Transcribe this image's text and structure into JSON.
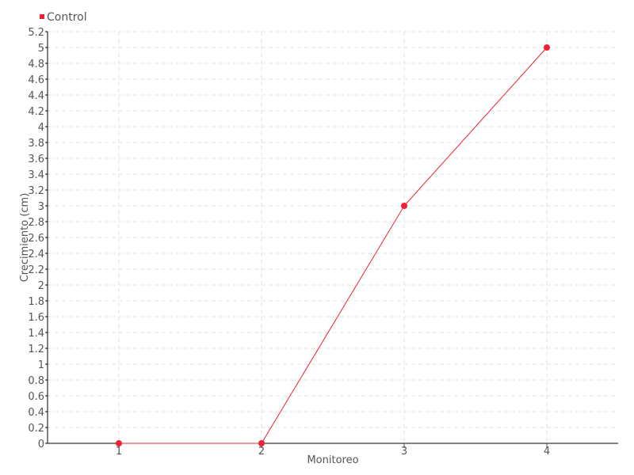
{
  "chart_data": {
    "type": "line",
    "xlabel": "Monitoreo",
    "ylabel": "Crecimiento (cm)",
    "categories": [
      "1",
      "2",
      "3",
      "4"
    ],
    "series": [
      {
        "name": "Control",
        "values": [
          0,
          0,
          3,
          5
        ],
        "color": "#ee2233"
      }
    ],
    "ylim": [
      0,
      5.2
    ],
    "ytick_step": 0.2,
    "grid": true,
    "legend": "top-left"
  }
}
